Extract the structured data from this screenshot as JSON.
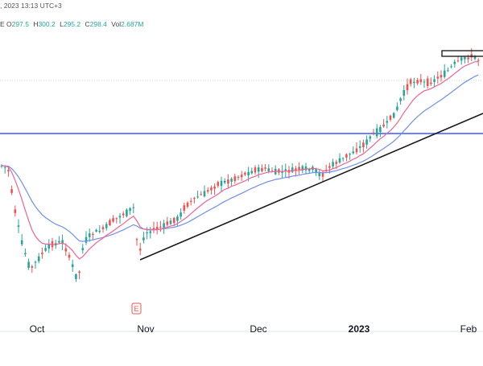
{
  "header": {
    "title_fragment": ", 2023 13:13 UTC+3",
    "ohlc": {
      "o_label": "E O",
      "o": "297.5",
      "h_label": "H",
      "h": "300.2",
      "l_label": "L",
      "l": "295.2",
      "c_label": "C",
      "c": "298.4",
      "vol_label": "Vol",
      "vol": "2.687M"
    }
  },
  "colors": {
    "bull": "#26a69a",
    "bear": "#ef5350",
    "ema_fast": "#f06292",
    "ema_slow": "#6f8ff0",
    "support_line": "#1a1a1a",
    "horizontal_line": "#3d5afe",
    "dotted_line": "#b2dfdb"
  },
  "earnings_marker": "E",
  "chart_data": {
    "type": "candlestick",
    "x_tick_labels": [
      "Oct",
      "Nov",
      "Dec",
      "2023",
      "Feb"
    ],
    "indicators": [
      "fast moving average",
      "slow moving average"
    ],
    "annotations": [
      "ascending trendline",
      "horizontal level",
      "resistance rectangle"
    ],
    "grid": false
  }
}
